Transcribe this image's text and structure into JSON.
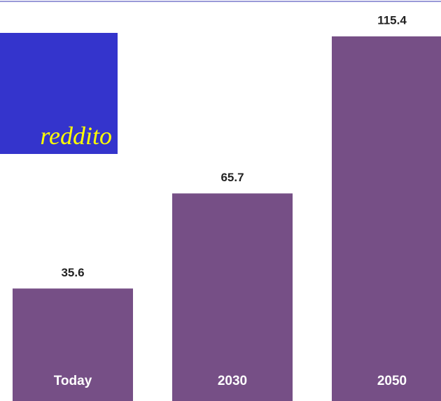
{
  "chart_data": {
    "type": "bar",
    "categories": [
      "Today",
      "2030",
      "2050"
    ],
    "values": [
      35.6,
      65.7,
      115.4
    ],
    "color": "#764f86",
    "annotation": "reddito"
  }
}
